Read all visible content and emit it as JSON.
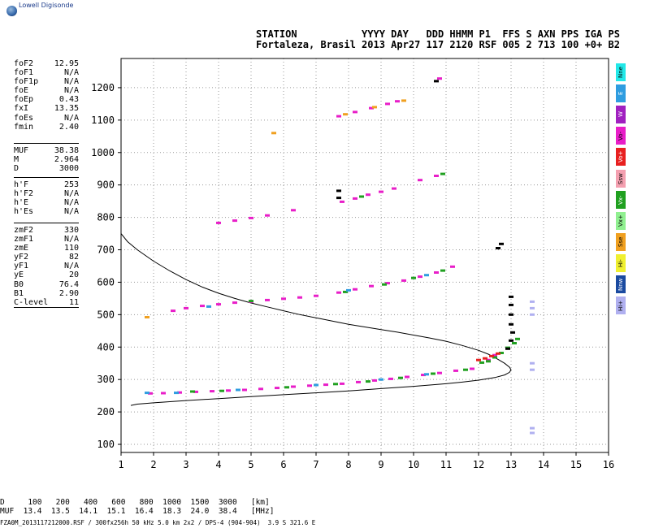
{
  "logo": {
    "text": "Lowell Digisonde"
  },
  "header": {
    "line1": "STATION           YYYY DAY   DDD HHMM P1  FFS S AXN PPS IGA PS",
    "line2": "Fortaleza, Brasil 2013 Apr27 117 2120 RSF 005 2 713 100 +0+ B2"
  },
  "params": {
    "group1": [
      [
        "foF2",
        "12.95"
      ],
      [
        "foF1",
        "N/A"
      ],
      [
        "foF1p",
        "N/A"
      ],
      [
        "foE",
        "N/A"
      ],
      [
        "foEp",
        "0.43"
      ],
      [
        "fxI",
        "13.35"
      ],
      [
        "foEs",
        "N/A"
      ],
      [
        "fmin",
        "2.40"
      ]
    ],
    "group2": [
      [
        "MUF",
        "38.38"
      ],
      [
        "M",
        "2.964"
      ],
      [
        "D",
        "3000"
      ]
    ],
    "group3": [
      [
        "h'F",
        "253"
      ],
      [
        "h'F2",
        "N/A"
      ],
      [
        "h'E",
        "N/A"
      ],
      [
        "h'Es",
        "N/A"
      ]
    ],
    "group4": [
      [
        "zmF2",
        "330"
      ],
      [
        "zmF1",
        "N/A"
      ],
      [
        "zmE",
        "110"
      ],
      [
        "yF2",
        "82"
      ],
      [
        "yF1",
        "N/A"
      ],
      [
        "yE",
        "20"
      ],
      [
        "B0",
        "76.4"
      ],
      [
        "B1",
        "2.90"
      ],
      [
        "C-level",
        "11"
      ]
    ]
  },
  "legend": [
    {
      "label": "Nne",
      "color": "#22e8e8"
    },
    {
      "label": "E",
      "color": "#2f9de0"
    },
    {
      "label": "W",
      "color": "#a020c0"
    },
    {
      "label": "Vo-",
      "color": "#e81ec8"
    },
    {
      "label": "Vo+",
      "color": "#e82020"
    },
    {
      "label": "Ssw",
      "color": "#f4a0b0"
    },
    {
      "label": "Vx-",
      "color": "#20a020"
    },
    {
      "label": "Vx+",
      "color": "#90f090"
    },
    {
      "label": "Sse",
      "color": "#f0a020"
    },
    {
      "label": "Hi-",
      "color": "#f0f030"
    },
    {
      "label": "Nnw",
      "color": "#1a4aa0"
    },
    {
      "label": "Hi+",
      "color": "#b0b0f0"
    }
  ],
  "muf_table": {
    "line1": "D     100   200   400   600   800  1000  1500  3000   [km]",
    "line2": "MUF  13.4  13.5  14.1  15.1  16.4  18.3  24.0  38.4   [MHz]"
  },
  "footer": "FZA0M_2013117212000.RSF / 300fx256h 50 kHz 5.0 km 2x2 / DPS-4 (904-904)  3.9 S 321.6 E",
  "chart_data": {
    "type": "scatter",
    "title": "",
    "xlabel": "",
    "ylabel": "",
    "xlim": [
      1,
      16
    ],
    "ylim": [
      75,
      1290
    ],
    "x_ticks": [
      1,
      2,
      3,
      4,
      5,
      6,
      7,
      8,
      9,
      10,
      11,
      12,
      13,
      14,
      15,
      16
    ],
    "y_ticks": [
      100,
      200,
      300,
      400,
      500,
      600,
      700,
      800,
      900,
      1000,
      1100,
      1200
    ],
    "grid": true,
    "series": [
      {
        "color": "#e81ec8",
        "points": [
          [
            1.9,
            257
          ],
          [
            2.3,
            258
          ],
          [
            2.8,
            260
          ],
          [
            3.3,
            262
          ],
          [
            3.8,
            264
          ],
          [
            4.3,
            266
          ],
          [
            4.8,
            268
          ],
          [
            5.3,
            271
          ],
          [
            5.8,
            274
          ],
          [
            6.3,
            278
          ],
          [
            6.8,
            281
          ],
          [
            7.3,
            284
          ],
          [
            7.8,
            287
          ],
          [
            8.3,
            292
          ],
          [
            8.8,
            297
          ],
          [
            9.3,
            302
          ],
          [
            9.8,
            308
          ],
          [
            10.3,
            314
          ],
          [
            10.8,
            320
          ],
          [
            11.3,
            327
          ],
          [
            11.8,
            333
          ],
          [
            12.3,
            360
          ],
          [
            12.5,
            375
          ],
          [
            2.6,
            512
          ],
          [
            3.0,
            520
          ],
          [
            3.5,
            527
          ],
          [
            4.0,
            532
          ],
          [
            4.5,
            537
          ],
          [
            5.0,
            540
          ],
          [
            5.5,
            545
          ],
          [
            6.0,
            549
          ],
          [
            6.5,
            553
          ],
          [
            7.0,
            558
          ],
          [
            7.7,
            568
          ],
          [
            8.2,
            578
          ],
          [
            8.7,
            588
          ],
          [
            9.2,
            597
          ],
          [
            9.7,
            605
          ],
          [
            10.2,
            617
          ],
          [
            10.7,
            630
          ],
          [
            11.2,
            648
          ],
          [
            4.0,
            783
          ],
          [
            4.5,
            790
          ],
          [
            5.0,
            798
          ],
          [
            5.5,
            806
          ],
          [
            6.3,
            822
          ],
          [
            7.8,
            848
          ],
          [
            8.2,
            858
          ],
          [
            8.6,
            870
          ],
          [
            9.0,
            879
          ],
          [
            9.4,
            889
          ],
          [
            10.2,
            915
          ],
          [
            10.7,
            928
          ],
          [
            7.7,
            1112
          ],
          [
            8.2,
            1125
          ],
          [
            8.7,
            1137
          ],
          [
            9.2,
            1150
          ],
          [
            9.5,
            1158
          ],
          [
            10.8,
            1228
          ]
        ]
      },
      {
        "color": "#20a020",
        "points": [
          [
            3.2,
            263
          ],
          [
            4.1,
            265
          ],
          [
            6.1,
            276
          ],
          [
            7.6,
            286
          ],
          [
            8.6,
            294
          ],
          [
            9.6,
            305
          ],
          [
            10.6,
            318
          ],
          [
            11.6,
            330
          ],
          [
            12.1,
            352
          ],
          [
            12.3,
            356
          ],
          [
            12.5,
            368
          ],
          [
            12.7,
            382
          ],
          [
            12.9,
            398
          ],
          [
            13.1,
            412
          ],
          [
            13.2,
            425
          ],
          [
            5.0,
            542
          ],
          [
            7.9,
            570
          ],
          [
            9.1,
            593
          ],
          [
            10.0,
            613
          ],
          [
            10.9,
            636
          ],
          [
            8.4,
            864
          ],
          [
            10.9,
            934
          ]
        ]
      },
      {
        "color": "#2f9de0",
        "points": [
          [
            1.8,
            259
          ],
          [
            2.7,
            259
          ],
          [
            4.6,
            268
          ],
          [
            7.0,
            283
          ],
          [
            9.0,
            300
          ],
          [
            10.4,
            316
          ],
          [
            3.7,
            525
          ],
          [
            8.0,
            575
          ],
          [
            10.4,
            622
          ]
        ]
      },
      {
        "color": "#e82020",
        "points": [
          [
            12.2,
            365
          ],
          [
            12.4,
            372
          ],
          [
            12.6,
            380
          ],
          [
            12.0,
            360
          ]
        ]
      },
      {
        "color": "#f0a020",
        "points": [
          [
            5.7,
            1060
          ],
          [
            7.9,
            1118
          ],
          [
            8.8,
            1140
          ],
          [
            9.7,
            1160
          ],
          [
            1.8,
            492
          ]
        ]
      },
      {
        "color": "#000000",
        "points": [
          [
            12.9,
            395
          ],
          [
            13.0,
            420
          ],
          [
            13.05,
            445
          ],
          [
            13.0,
            470
          ],
          [
            13.0,
            500
          ],
          [
            13.0,
            530
          ],
          [
            13.0,
            555
          ],
          [
            12.7,
            718
          ],
          [
            12.6,
            705
          ],
          [
            10.7,
            1220
          ],
          [
            7.7,
            882
          ],
          [
            7.7,
            860
          ]
        ]
      },
      {
        "color": "#b0b0f0",
        "points": [
          [
            13.65,
            540
          ],
          [
            13.65,
            520
          ],
          [
            13.65,
            500
          ],
          [
            13.65,
            350
          ],
          [
            13.65,
            330
          ],
          [
            13.65,
            150
          ],
          [
            13.65,
            135
          ]
        ]
      }
    ],
    "trace_curve": [
      [
        1.0,
        750
      ],
      [
        1.2,
        725
      ],
      [
        1.5,
        700
      ],
      [
        2.0,
        665
      ],
      [
        2.5,
        635
      ],
      [
        3.0,
        608
      ],
      [
        3.5,
        585
      ],
      [
        4.0,
        566
      ],
      [
        4.5,
        550
      ],
      [
        5.0,
        536
      ],
      [
        5.5,
        524
      ],
      [
        6.0,
        512
      ],
      [
        6.5,
        500
      ],
      [
        7.0,
        490
      ],
      [
        7.5,
        480
      ],
      [
        8.0,
        470
      ],
      [
        8.5,
        462
      ],
      [
        9.0,
        454
      ],
      [
        9.5,
        446
      ],
      [
        10.0,
        437
      ],
      [
        10.5,
        428
      ],
      [
        11.0,
        418
      ],
      [
        11.5,
        405
      ],
      [
        12.0,
        390
      ],
      [
        12.3,
        378
      ],
      [
        12.6,
        362
      ],
      [
        12.8,
        350
      ],
      [
        12.95,
        338
      ],
      [
        13.0,
        330
      ],
      [
        12.95,
        322
      ],
      [
        12.8,
        314
      ],
      [
        12.5,
        306
      ],
      [
        12.0,
        298
      ],
      [
        11.5,
        292
      ],
      [
        11.0,
        287
      ],
      [
        10.5,
        283
      ],
      [
        10.0,
        279
      ],
      [
        9.0,
        272
      ],
      [
        8.0,
        265
      ],
      [
        7.0,
        259
      ],
      [
        6.0,
        253
      ],
      [
        5.0,
        247
      ],
      [
        4.0,
        241
      ],
      [
        3.0,
        235
      ],
      [
        2.0,
        228
      ],
      [
        1.5,
        224
      ],
      [
        1.3,
        220
      ]
    ]
  }
}
